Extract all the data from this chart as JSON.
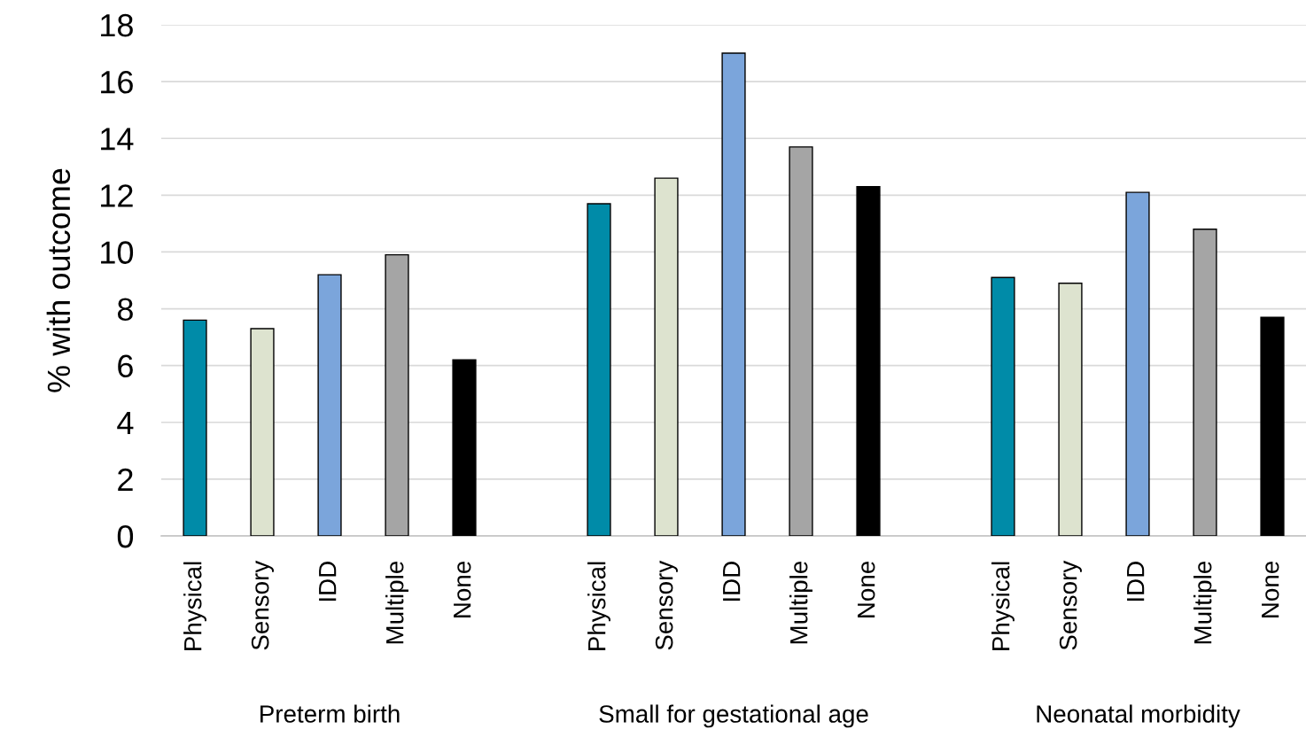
{
  "chart_data": {
    "type": "bar",
    "ylabel": "% with outcome",
    "categories": [
      "Physical",
      "Sensory",
      "IDD",
      "Multiple",
      "None",
      null,
      "Physical",
      "Sensory",
      "IDD",
      "Multiple",
      "None",
      null,
      "Physical",
      "Sensory",
      "IDD",
      "Multiple",
      "None"
    ],
    "values": [
      7.6,
      7.3,
      9.2,
      9.9,
      6.2,
      null,
      11.7,
      12.6,
      17.0,
      13.7,
      12.3,
      null,
      9.1,
      8.9,
      12.1,
      10.8,
      7.7
    ],
    "colors": [
      "#008ba8",
      "#dde3cf",
      "#7ba5db",
      "#a5a5a5",
      "#000000",
      "#ffffff",
      "#008ba8",
      "#dde3cf",
      "#7ba5db",
      "#a5a5a5",
      "#000000",
      "#ffffff",
      "#008ba8",
      "#dde3cf",
      "#7ba5db",
      "#a5a5a5",
      "#000000"
    ],
    "annotations": [
      "Preterm birth",
      "Small for gestational age",
      "Neonatal morbidity"
    ],
    "ylim": [
      0,
      18
    ],
    "yticks": [
      0,
      2,
      4,
      6,
      8,
      10,
      12,
      14,
      16,
      18
    ],
    "grid": "y"
  }
}
